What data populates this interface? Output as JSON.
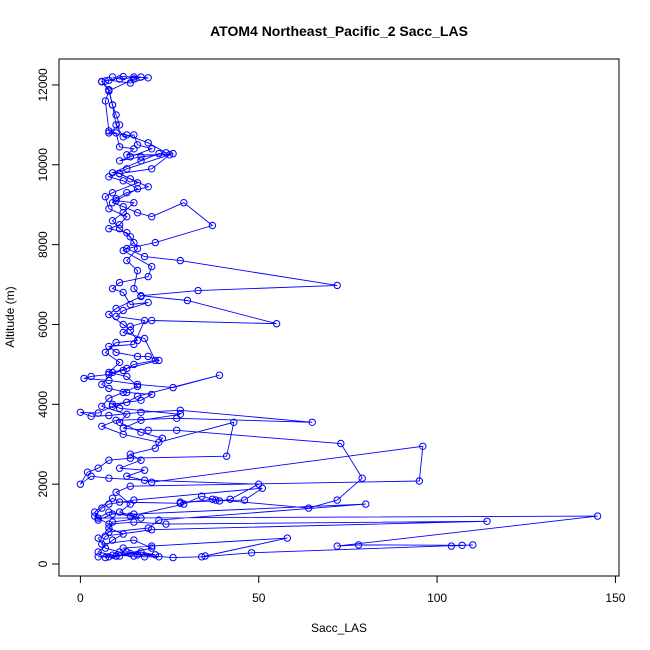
{
  "chart_data": {
    "type": "line",
    "title": "ATOM4 Northeast_Pacific_2 Sacc_LAS",
    "xlabel": "Sacc_LAS",
    "ylabel": "Altitude (m)",
    "xlim": [
      -6,
      151
    ],
    "ylim": [
      -300,
      12650
    ],
    "x_ticks": [
      0,
      50,
      100,
      150
    ],
    "y_ticks": [
      0,
      2000,
      4000,
      6000,
      8000,
      10000,
      12000
    ],
    "grid": false,
    "legend": "none",
    "series_color": "#0000FF",
    "series": [
      {
        "values": [
          [
            7,
            12100
          ],
          [
            12,
            12210
          ],
          [
            15,
            12200
          ],
          [
            19,
            12180
          ],
          [
            14,
            12050
          ],
          [
            8,
            12120
          ],
          [
            6,
            12090
          ],
          [
            8,
            11880
          ],
          [
            9,
            11500
          ],
          [
            10,
            11250
          ],
          [
            11,
            11000
          ],
          [
            8,
            10800
          ],
          [
            13,
            10750
          ],
          [
            19,
            10550
          ],
          [
            24,
            10300
          ],
          [
            22,
            10280
          ],
          [
            17,
            10100
          ],
          [
            9,
            9800
          ],
          [
            11,
            9780
          ],
          [
            14,
            9650
          ],
          [
            19,
            9450
          ],
          [
            13,
            9300
          ],
          [
            10,
            9150
          ],
          [
            9,
            9050
          ],
          [
            12,
            8950
          ],
          [
            16,
            8800
          ],
          [
            20,
            8700
          ],
          [
            29,
            9050
          ],
          [
            37,
            8480
          ],
          [
            21,
            8050
          ],
          [
            13,
            7900
          ],
          [
            18,
            7700
          ],
          [
            28,
            7600
          ],
          [
            72,
            6980
          ],
          [
            33,
            6850
          ],
          [
            17,
            6720
          ],
          [
            30,
            6600
          ],
          [
            55,
            6020
          ],
          [
            20,
            6100
          ],
          [
            14,
            5950
          ],
          [
            12,
            5800
          ],
          [
            18,
            5650
          ],
          [
            21,
            5100
          ],
          [
            15,
            5000
          ],
          [
            12,
            4850
          ],
          [
            8,
            4750
          ],
          [
            3,
            4700
          ],
          [
            1,
            4650
          ],
          [
            8,
            4600
          ],
          [
            16,
            4500
          ],
          [
            26,
            4420
          ],
          [
            39,
            4730
          ],
          [
            16,
            4200
          ],
          [
            13,
            4050
          ],
          [
            9,
            3950
          ],
          [
            5,
            3780
          ],
          [
            0,
            3800
          ],
          [
            3,
            3700
          ],
          [
            8,
            3720
          ],
          [
            17,
            3800
          ],
          [
            28,
            3850
          ],
          [
            65,
            3550
          ],
          [
            27,
            3650
          ],
          [
            10,
            3600
          ],
          [
            6,
            3450
          ],
          [
            12,
            3250
          ],
          [
            22,
            3050
          ],
          [
            43,
            3550
          ],
          [
            41,
            2700
          ],
          [
            14,
            2650
          ],
          [
            8,
            2600
          ],
          [
            5,
            2400
          ],
          [
            2,
            2300
          ],
          [
            0,
            2000
          ],
          [
            3,
            2200
          ],
          [
            8,
            2150
          ],
          [
            18,
            2100
          ],
          [
            50,
            2000
          ],
          [
            42,
            1620
          ],
          [
            39,
            1580
          ],
          [
            28,
            1550
          ],
          [
            46,
            1600
          ],
          [
            51,
            1900
          ],
          [
            15,
            1600
          ],
          [
            8,
            1500
          ],
          [
            6,
            1400
          ],
          [
            4,
            1200
          ],
          [
            8,
            1000
          ],
          [
            15,
            1050
          ],
          [
            24,
            1000
          ],
          [
            114,
            1070
          ],
          [
            20,
            860
          ],
          [
            7,
            700
          ],
          [
            6,
            500
          ],
          [
            15,
            600
          ],
          [
            20,
            400
          ],
          [
            10,
            200
          ],
          [
            8,
            180
          ],
          [
            5,
            180
          ],
          [
            9,
            220
          ],
          [
            15,
            200
          ],
          [
            18,
            180
          ],
          [
            22,
            180
          ],
          [
            13,
            300
          ],
          [
            12,
            400
          ],
          [
            20,
            450
          ],
          [
            58,
            650
          ],
          [
            35,
            200
          ]
        ]
      },
      {
        "values": [
          [
            6,
            12080
          ],
          [
            8,
            11850
          ],
          [
            7,
            11600
          ],
          [
            8,
            10850
          ],
          [
            10,
            10800
          ],
          [
            11,
            10450
          ],
          [
            15,
            10400
          ],
          [
            13,
            10250
          ],
          [
            25,
            10250
          ],
          [
            20,
            9900
          ],
          [
            11,
            9780
          ],
          [
            16,
            9550
          ],
          [
            9,
            9300
          ],
          [
            7,
            9200
          ],
          [
            8,
            8900
          ],
          [
            13,
            8700
          ],
          [
            11,
            8500
          ],
          [
            8,
            8400
          ],
          [
            13,
            8300
          ],
          [
            15,
            8050
          ],
          [
            12,
            7850
          ],
          [
            20,
            7450
          ],
          [
            19,
            7200
          ],
          [
            11,
            7050
          ],
          [
            9,
            6900
          ],
          [
            12,
            6800
          ],
          [
            14,
            6500
          ],
          [
            19,
            6550
          ],
          [
            12,
            6350
          ],
          [
            10,
            6200
          ],
          [
            18,
            6100
          ],
          [
            15,
            5500
          ],
          [
            8,
            5450
          ],
          [
            10,
            5300
          ],
          [
            16,
            5200
          ],
          [
            19,
            5200
          ],
          [
            22,
            5100
          ],
          [
            13,
            4900
          ],
          [
            9,
            4800
          ],
          [
            6,
            4500
          ],
          [
            8,
            4400
          ],
          [
            13,
            4300
          ],
          [
            20,
            4250
          ],
          [
            17,
            4100
          ],
          [
            9,
            4000
          ],
          [
            11,
            3900
          ],
          [
            28,
            3750
          ],
          [
            17,
            3600
          ],
          [
            12,
            3400
          ],
          [
            19,
            3350
          ],
          [
            27,
            3350
          ],
          [
            73,
            3020
          ],
          [
            79,
            2150
          ],
          [
            72,
            1600
          ],
          [
            64,
            1400
          ],
          [
            37,
            1620
          ],
          [
            28,
            1520
          ],
          [
            11,
            1550
          ],
          [
            9,
            1650
          ],
          [
            4,
            1300
          ],
          [
            5,
            1100
          ],
          [
            9,
            1250
          ],
          [
            15,
            1250
          ],
          [
            80,
            1500
          ],
          [
            22,
            1100
          ],
          [
            19,
            900
          ],
          [
            8,
            800
          ],
          [
            5,
            650
          ],
          [
            7,
            400
          ],
          [
            11,
            300
          ],
          [
            16,
            230
          ],
          [
            26,
            160
          ],
          [
            34,
            180
          ],
          [
            48,
            280
          ],
          [
            110,
            480
          ],
          [
            104,
            450
          ],
          [
            107,
            470
          ],
          [
            78,
            480
          ],
          [
            72,
            450
          ],
          [
            145,
            1200
          ],
          [
            5,
            1150
          ],
          [
            8,
            1300
          ],
          [
            14,
            1200
          ],
          [
            29,
            1500
          ],
          [
            34,
            1700
          ],
          [
            38,
            1600
          ]
        ]
      },
      {
        "values": [
          [
            9,
            12200
          ],
          [
            11,
            12150
          ],
          [
            17,
            12200
          ],
          [
            15,
            12150
          ],
          [
            8,
            11850
          ],
          [
            9,
            11500
          ],
          [
            10,
            11000
          ],
          [
            12,
            10700
          ],
          [
            15,
            10750
          ],
          [
            16,
            10500
          ],
          [
            20,
            10400
          ],
          [
            14,
            10200
          ],
          [
            11,
            10100
          ],
          [
            17,
            10200
          ],
          [
            26,
            10280
          ],
          [
            13,
            9900
          ],
          [
            8,
            9700
          ],
          [
            12,
            9600
          ],
          [
            16,
            9400
          ],
          [
            10,
            9100
          ],
          [
            15,
            9050
          ],
          [
            12,
            8800
          ],
          [
            9,
            8600
          ],
          [
            11,
            8400
          ],
          [
            14,
            8200
          ],
          [
            16,
            7900
          ],
          [
            13,
            7600
          ],
          [
            16,
            7350
          ],
          [
            15,
            6900
          ],
          [
            17,
            6700
          ],
          [
            10,
            6400
          ],
          [
            8,
            6250
          ],
          [
            12,
            6000
          ],
          [
            14,
            5850
          ],
          [
            16,
            5600
          ],
          [
            10,
            5550
          ],
          [
            7,
            5300
          ],
          [
            11,
            5050
          ],
          [
            8,
            4800
          ],
          [
            13,
            4700
          ],
          [
            16,
            4450
          ],
          [
            12,
            4300
          ],
          [
            8,
            4150
          ],
          [
            6,
            3950
          ],
          [
            13,
            3750
          ],
          [
            11,
            3550
          ],
          [
            17,
            3300
          ],
          [
            23,
            3150
          ],
          [
            21,
            2900
          ],
          [
            14,
            2750
          ],
          [
            17,
            2600
          ],
          [
            11,
            2400
          ],
          [
            18,
            2350
          ],
          [
            13,
            2200
          ],
          [
            20,
            2050
          ],
          [
            96,
            2950
          ],
          [
            95,
            2080
          ],
          [
            14,
            1950
          ],
          [
            10,
            1800
          ],
          [
            14,
            1500
          ],
          [
            11,
            1300
          ],
          [
            17,
            1150
          ],
          [
            9,
            1050
          ],
          [
            8,
            900
          ],
          [
            12,
            750
          ],
          [
            9,
            600
          ],
          [
            5,
            300
          ],
          [
            10,
            200
          ],
          [
            14,
            260
          ],
          [
            21,
            230
          ],
          [
            17,
            300
          ],
          [
            11,
            200
          ],
          [
            7,
            160
          ]
        ]
      }
    ]
  }
}
